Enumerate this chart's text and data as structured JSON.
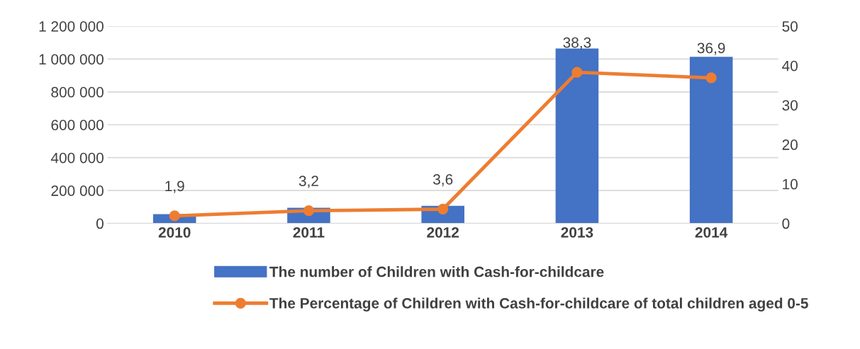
{
  "chart_data": {
    "type": "bar",
    "categories": [
      "2010",
      "2011",
      "2012",
      "2013",
      "2014"
    ],
    "series": [
      {
        "name": "The number of Children with Cash-for-childcare",
        "color": "#4472c4",
        "values": [
          56000,
          95000,
          107000,
          1064000,
          1014000
        ]
      },
      {
        "name": "The Percentage of Children with Cash-for-childcare of total children aged 0-5",
        "color": "#ed7d31",
        "type": "line",
        "axis": "y2",
        "marker": "circle",
        "values": [
          1.9,
          3.2,
          3.6,
          38.3,
          36.9
        ],
        "value_labels": [
          "1,9",
          "3,2",
          "3,6",
          "38,3",
          "36,9"
        ]
      }
    ],
    "ylim": [
      0,
      1200000
    ],
    "yticks": [
      {
        "value": 0,
        "label": "0"
      },
      {
        "value": 200000,
        "label": "200 000"
      },
      {
        "value": 400000,
        "label": "400 000"
      },
      {
        "value": 600000,
        "label": "600 000"
      },
      {
        "value": 800000,
        "label": "800 000"
      },
      {
        "value": 1000000,
        "label": "1 000 000"
      },
      {
        "value": 1200000,
        "label": "1 200 000"
      }
    ],
    "y2lim": [
      0,
      50
    ],
    "y2ticks": [
      0,
      10,
      20,
      30,
      40,
      50
    ],
    "grid": "y",
    "legend": "bottom"
  }
}
